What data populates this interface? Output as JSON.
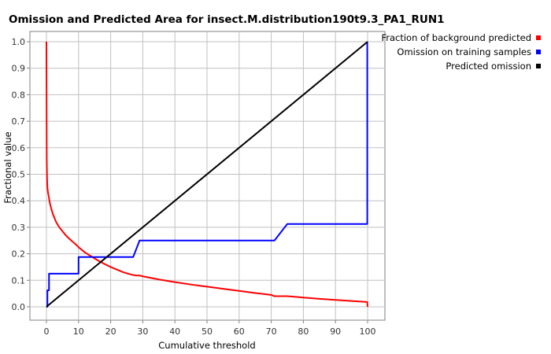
{
  "chart_data": {
    "type": "line",
    "title": "Omission and Predicted Area for insect.M.distribution190t9.3_PA1_RUN1",
    "xlabel": "Cumulative threshold",
    "ylabel": "Fractional value",
    "xlim": [
      0,
      100
    ],
    "ylim": [
      0,
      1
    ],
    "xticks": [
      "0",
      "10",
      "20",
      "30",
      "40",
      "50",
      "60",
      "70",
      "80",
      "90",
      "100"
    ],
    "yticks": [
      "0.0",
      "0.1",
      "0.2",
      "0.3",
      "0.4",
      "0.5",
      "0.6",
      "0.7",
      "0.8",
      "0.9",
      "1.0"
    ],
    "grid": true,
    "legend_position": "top-right outside",
    "series": [
      {
        "name": "Fraction of background predicted",
        "color": "#ff0000",
        "x": [
          0,
          0.05,
          0.1,
          0.2,
          0.3,
          0.5,
          0.8,
          1,
          1.5,
          2,
          3,
          4,
          5,
          6,
          7,
          8,
          9,
          10,
          11,
          12,
          14,
          16,
          18,
          20,
          22,
          24,
          26,
          27,
          28,
          29,
          30,
          35,
          40,
          45,
          50,
          55,
          60,
          65,
          70,
          71,
          75,
          80,
          85,
          90,
          95,
          99.9,
          100
        ],
        "y": [
          1.0,
          0.75,
          0.55,
          0.48,
          0.45,
          0.43,
          0.41,
          0.395,
          0.37,
          0.35,
          0.32,
          0.3,
          0.285,
          0.27,
          0.258,
          0.247,
          0.237,
          0.225,
          0.215,
          0.205,
          0.19,
          0.175,
          0.162,
          0.15,
          0.14,
          0.13,
          0.123,
          0.12,
          0.118,
          0.118,
          0.115,
          0.103,
          0.093,
          0.084,
          0.076,
          0.068,
          0.06,
          0.052,
          0.045,
          0.04,
          0.04,
          0.035,
          0.03,
          0.026,
          0.022,
          0.018,
          0.0
        ]
      },
      {
        "name": "Omission on training samples",
        "color": "#0000ff",
        "x": [
          0,
          0.3,
          0.3,
          0.8,
          0.8,
          10,
          10,
          27,
          27,
          29,
          29,
          71,
          71,
          75,
          75,
          99.9,
          99.9
        ],
        "y": [
          0.0,
          0.0,
          0.0625,
          0.0625,
          0.125,
          0.125,
          0.1875,
          0.1875,
          0.1875,
          0.25,
          0.25,
          0.25,
          0.25,
          0.3125,
          0.3125,
          0.3125,
          1.0
        ]
      },
      {
        "name": "Predicted omission",
        "color": "#000000",
        "x": [
          0,
          100
        ],
        "y": [
          0.0,
          1.0
        ]
      }
    ]
  }
}
